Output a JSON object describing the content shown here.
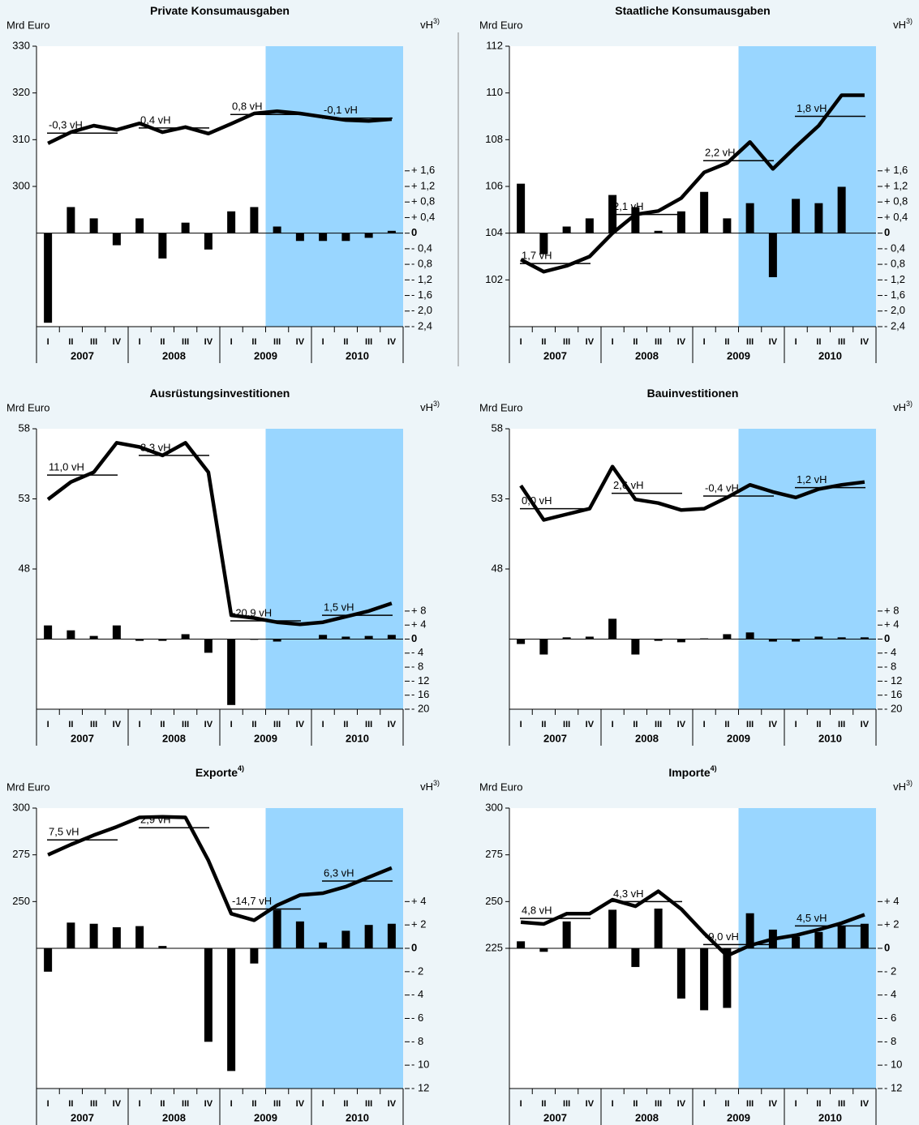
{
  "chart_data": [
    {
      "type": "combo",
      "title": "Private Konsumausgaben",
      "y_label": "Mrd Euro",
      "y2_label": "vH",
      "y2_label_note": "3)",
      "categories": [
        "I",
        "II",
        "III",
        "IV",
        "I",
        "II",
        "III",
        "IV",
        "I",
        "II",
        "III",
        "IV",
        "I",
        "II",
        "III",
        "IV"
      ],
      "years": [
        "2007",
        "2008",
        "2009",
        "2010"
      ],
      "shaded_from": 10,
      "shade_color": "#99d6ff",
      "ylim": [
        270,
        330
      ],
      "yticks": [
        330,
        320,
        310,
        300
      ],
      "y2lim": [
        -2.4,
        4.8
      ],
      "y2ticks": [
        {
          "value": 1.6,
          "label": "+ 1,6"
        },
        {
          "value": 1.2,
          "label": "+ 1,2"
        },
        {
          "value": 0.8,
          "label": "+ 0,8"
        },
        {
          "value": 0.4,
          "label": "+ 0,4"
        },
        0,
        {
          "value": -0.4,
          "label": "- 0,4"
        },
        {
          "value": -0.8,
          "label": "- 0,8"
        },
        {
          "value": -1.2,
          "label": "- 1,2"
        },
        {
          "value": -1.6,
          "label": "- 1,6"
        },
        {
          "value": -2.0,
          "label": "- 2,0"
        },
        {
          "value": -2.4,
          "label": "- 2,4"
        }
      ],
      "line": {
        "color": "#000000",
        "values": [
          309.2,
          311.6,
          313.0,
          312.1,
          313.5,
          311.6,
          312.7,
          311.3,
          313.4,
          315.6,
          316.1,
          315.6,
          314.9,
          314.2,
          314.0,
          314.4
        ]
      },
      "bars": {
        "color": "#000000",
        "axis": "y2",
        "values": [
          -2.3,
          0.67,
          0.38,
          -0.31,
          0.38,
          -0.65,
          0.27,
          -0.42,
          0.56,
          0.67,
          0.17,
          -0.2,
          -0.2,
          -0.2,
          -0.12,
          0.06
        ]
      },
      "annual_averages": [
        {
          "value": 311.4,
          "label": "-0,3 vH"
        },
        {
          "value": 312.5,
          "label": "0,4 vH"
        },
        {
          "value": 315.4,
          "label": "0,8 vH"
        },
        {
          "value": 314.6,
          "label": "-0,1 vH"
        }
      ]
    },
    {
      "type": "combo",
      "title": "Staatliche Konsumausgaben",
      "y_label": "Mrd Euro",
      "y2_label": "vH",
      "y2_label_note": "3)",
      "categories": [
        "I",
        "II",
        "III",
        "IV",
        "I",
        "II",
        "III",
        "IV",
        "I",
        "II",
        "III",
        "IV",
        "I",
        "II",
        "III",
        "IV"
      ],
      "years": [
        "2007",
        "2008",
        "2009",
        "2010"
      ],
      "shaded_from": 10,
      "shade_color": "#99d6ff",
      "ylim": [
        100,
        112
      ],
      "yticks": [
        112,
        110,
        108,
        106,
        104,
        102
      ],
      "y2lim": [
        -2.4,
        4.8
      ],
      "y2ticks": [
        {
          "value": 1.6,
          "label": "+ 1,6"
        },
        {
          "value": 1.2,
          "label": "+ 1,2"
        },
        {
          "value": 0.8,
          "label": "+ 0,8"
        },
        {
          "value": 0.4,
          "label": "+ 0,4"
        },
        0,
        {
          "value": -0.4,
          "label": "- 0,4"
        },
        {
          "value": -0.8,
          "label": "- 0,8"
        },
        {
          "value": -1.2,
          "label": "- 1,2"
        },
        {
          "value": -1.6,
          "label": "- 1,6"
        },
        {
          "value": -2.0,
          "label": "- 2,0"
        },
        {
          "value": -2.4,
          "label": "- 2,4"
        }
      ],
      "line": {
        "color": "#000000",
        "values": [
          102.87,
          102.35,
          102.6,
          103.0,
          104.0,
          104.8,
          104.95,
          105.5,
          106.6,
          107.0,
          107.9,
          106.75,
          107.7,
          108.6,
          109.9,
          109.9
        ]
      },
      "bars": {
        "color": "#000000",
        "axis": "y2",
        "values": [
          1.27,
          -0.54,
          0.17,
          0.38,
          0.98,
          0.67,
          0.06,
          0.56,
          1.06,
          0.38,
          0.77,
          -1.13,
          0.88,
          0.77,
          1.19,
          null
        ]
      },
      "annual_averages": [
        {
          "value": 102.7,
          "label": "1,7 vH"
        },
        {
          "value": 104.8,
          "label": "2,1 vH"
        },
        {
          "value": 107.1,
          "label": "2,2 vH"
        },
        {
          "value": 109.0,
          "label": "1,8 vH"
        }
      ]
    },
    {
      "type": "combo",
      "title": "Ausrüstungsinvestitionen",
      "y_label": "Mrd Euro",
      "y2_label": "vH",
      "y2_label_note": "3)",
      "categories": [
        "I",
        "II",
        "III",
        "IV",
        "I",
        "II",
        "III",
        "IV",
        "I",
        "II",
        "III",
        "IV",
        "I",
        "II",
        "III",
        "IV"
      ],
      "years": [
        "2007",
        "2008",
        "2009",
        "2010"
      ],
      "shaded_from": 10,
      "shade_color": "#99d6ff",
      "ylim": [
        38,
        58
      ],
      "yticks": [
        58,
        53,
        48
      ],
      "y2lim": [
        -20,
        60
      ],
      "y2ticks": [
        {
          "value": 8,
          "label": "+ 8"
        },
        {
          "value": 4,
          "label": "+ 4"
        },
        0,
        {
          "value": -4,
          "label": "- 4"
        },
        {
          "value": -8,
          "label": "- 8"
        },
        {
          "value": -12,
          "label": "- 12"
        },
        {
          "value": -16,
          "label": "- 16"
        },
        {
          "value": -20,
          "label": "- 20"
        }
      ],
      "line": {
        "color": "#000000",
        "values": [
          52.96,
          54.2,
          54.9,
          57.0,
          56.7,
          56.1,
          57.0,
          54.9,
          44.7,
          44.5,
          44.2,
          44.05,
          44.2,
          44.6,
          45.0,
          45.55
        ]
      },
      "bars": {
        "color": "#000000",
        "axis": "y2",
        "values": [
          3.9,
          2.5,
          0.9,
          3.9,
          -0.5,
          -0.5,
          1.4,
          -3.9,
          -18.8,
          -0.2,
          -0.7,
          0,
          1.2,
          0.7,
          0.9,
          1.2
        ]
      },
      "annual_averages": [
        {
          "value": 54.7,
          "label": "11,0 vH"
        },
        {
          "value": 56.1,
          "label": "3,3 vH"
        },
        {
          "value": 44.3,
          "label": "-20,9 vH"
        },
        {
          "value": 44.7,
          "label": "1,5 vH"
        }
      ]
    },
    {
      "type": "combo",
      "title": "Bauinvestitionen",
      "y_label": "Mrd Euro",
      "y2_label": "vH",
      "y2_label_note": "3)",
      "categories": [
        "I",
        "II",
        "III",
        "IV",
        "I",
        "II",
        "III",
        "IV",
        "I",
        "II",
        "III",
        "IV",
        "I",
        "II",
        "III",
        "IV"
      ],
      "years": [
        "2007",
        "2008",
        "2009",
        "2010"
      ],
      "shaded_from": 10,
      "shade_color": "#99d6ff",
      "ylim": [
        38,
        58
      ],
      "yticks": [
        58,
        53,
        48
      ],
      "y2lim": [
        -20,
        60
      ],
      "y2ticks": [
        {
          "value": 8,
          "label": "+ 8"
        },
        {
          "value": 4,
          "label": "+ 4"
        },
        0,
        {
          "value": -4,
          "label": "- 4"
        },
        {
          "value": -8,
          "label": "- 8"
        },
        {
          "value": -12,
          "label": "- 12"
        },
        {
          "value": -16,
          "label": "- 16"
        },
        {
          "value": -20,
          "label": "- 20"
        }
      ],
      "line": {
        "color": "#000000",
        "values": [
          53.95,
          51.5,
          51.9,
          52.3,
          55.3,
          52.96,
          52.7,
          52.2,
          52.3,
          53.1,
          54.0,
          53.5,
          53.1,
          53.7,
          54.0,
          54.2
        ]
      },
      "bars": {
        "color": "#000000",
        "axis": "y2",
        "values": [
          -1.4,
          -4.4,
          0.5,
          0.7,
          5.8,
          -4.4,
          -0.5,
          -0.9,
          0.2,
          1.4,
          1.9,
          -0.7,
          -0.7,
          0.7,
          0.5,
          0.5
        ]
      },
      "annual_averages": [
        {
          "value": 52.3,
          "label": "0,0 vH"
        },
        {
          "value": 53.4,
          "label": "2,6 vH"
        },
        {
          "value": 53.2,
          "label": "-0,4 vH"
        },
        {
          "value": 53.8,
          "label": "1,2 vH"
        }
      ]
    },
    {
      "type": "combo",
      "title": "Exporte",
      "title_note": "4)",
      "y_label": "Mrd Euro",
      "y2_label": "vH",
      "y2_label_note": "3)",
      "categories": [
        "I",
        "II",
        "III",
        "IV",
        "I",
        "II",
        "III",
        "IV",
        "I",
        "II",
        "III",
        "IV",
        "I",
        "II",
        "III",
        "IV"
      ],
      "years": [
        "2007",
        "2008",
        "2009",
        "2010"
      ],
      "shaded_from": 10,
      "shade_color": "#99d6ff",
      "ylim": [
        150,
        300
      ],
      "yticks": [
        300,
        275,
        250
      ],
      "y2lim": [
        -12,
        12
      ],
      "y2ticks": [
        {
          "value": 4,
          "label": "+ 4"
        },
        {
          "value": 2,
          "label": "+ 2"
        },
        0,
        {
          "value": -2,
          "label": "- 2"
        },
        {
          "value": -4,
          "label": "- 4"
        },
        {
          "value": -6,
          "label": "- 6"
        },
        {
          "value": -8,
          "label": "- 8"
        },
        {
          "value": -10,
          "label": "- 10"
        },
        {
          "value": -12,
          "label": "- 12"
        }
      ],
      "line": {
        "color": "#000000",
        "values": [
          275,
          280.5,
          285.5,
          290,
          295,
          295.3,
          295,
          272,
          243.5,
          240,
          248,
          253.5,
          254.5,
          258,
          263,
          268
        ]
      },
      "bars": {
        "color": "#000000",
        "axis": "y2",
        "values": [
          -2.0,
          2.2,
          2.1,
          1.8,
          1.9,
          0.2,
          0,
          -8.0,
          -10.5,
          -1.3,
          3.3,
          2.3,
          0.5,
          1.5,
          2.0,
          2.1
        ]
      },
      "annual_averages": [
        {
          "value": 283,
          "label": "7,5 vH"
        },
        {
          "value": 289.5,
          "label": "2,9 vH"
        },
        {
          "value": 246,
          "label": "-14,7 vH"
        },
        {
          "value": 261,
          "label": "6,3 vH"
        }
      ]
    },
    {
      "type": "combo",
      "title": "Importe",
      "title_note": "4)",
      "y_label": "Mrd Euro",
      "y2_label": "vH",
      "y2_label_note": "3)",
      "categories": [
        "I",
        "II",
        "III",
        "IV",
        "I",
        "II",
        "III",
        "IV",
        "I",
        "II",
        "III",
        "IV",
        "I",
        "II",
        "III",
        "IV"
      ],
      "years": [
        "2007",
        "2008",
        "2009",
        "2010"
      ],
      "shaded_from": 10,
      "shade_color": "#99d6ff",
      "ylim": [
        150,
        300
      ],
      "yticks": [
        300,
        275,
        250,
        225
      ],
      "y2lim": [
        -12,
        12
      ],
      "y2ticks": [
        {
          "value": 4,
          "label": "+ 4"
        },
        {
          "value": 2,
          "label": "+ 2"
        },
        0,
        {
          "value": -2,
          "label": "- 2"
        },
        {
          "value": -4,
          "label": "- 4"
        },
        {
          "value": -6,
          "label": "- 6"
        },
        {
          "value": -8,
          "label": "- 8"
        },
        {
          "value": -10,
          "label": "- 10"
        },
        {
          "value": -12,
          "label": "- 12"
        }
      ],
      "line": {
        "color": "#000000",
        "values": [
          239,
          238,
          243.5,
          243.5,
          251,
          247.5,
          255.5,
          246,
          233,
          221,
          226.5,
          230,
          232,
          235,
          238.5,
          243
        ]
      },
      "bars": {
        "color": "#000000",
        "axis": "y2",
        "values": [
          0.6,
          -0.3,
          2.3,
          null,
          3.3,
          -1.6,
          3.4,
          -4.3,
          -5.3,
          -5.1,
          3.0,
          1.6,
          1.0,
          1.4,
          1.9,
          2.1
        ]
      },
      "annual_averages": [
        {
          "value": 241,
          "label": "4,8 vH"
        },
        {
          "value": 250,
          "label": "4,3 vH"
        },
        {
          "value": 227,
          "label": "-9,0 vH"
        },
        {
          "value": 237,
          "label": "4,5 vH"
        }
      ]
    }
  ]
}
